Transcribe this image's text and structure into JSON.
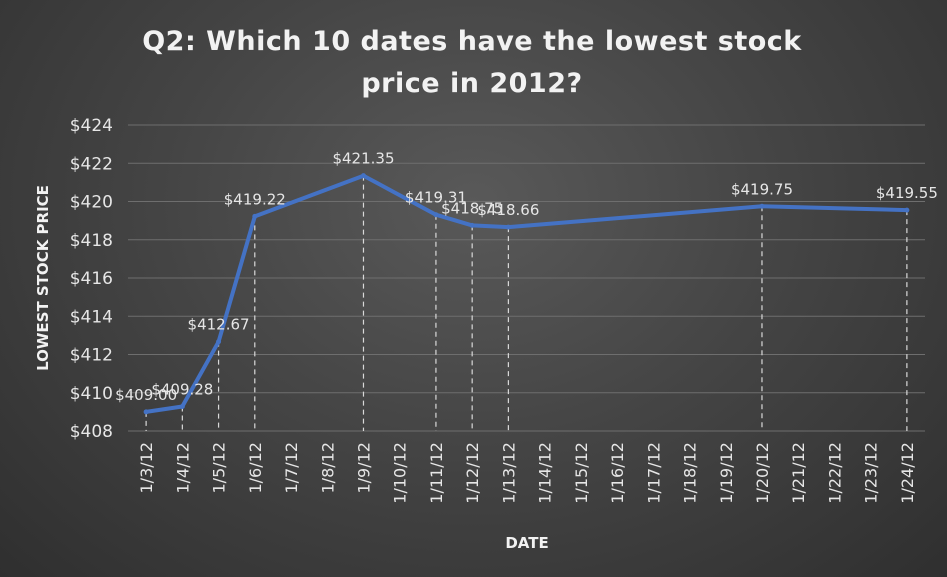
{
  "chart_data": {
    "type": "line",
    "title_line1": "Q2: Which 10 dates have the lowest stock",
    "title_line2": "price in 2012?",
    "xlabel": "DATE",
    "ylabel": "LOWEST STOCK PRICE",
    "ylim": [
      408,
      424
    ],
    "yticks": [
      408,
      410,
      412,
      414,
      416,
      418,
      420,
      422,
      424
    ],
    "ytick_labels": [
      "$408",
      "$410",
      "$412",
      "$414",
      "$416",
      "$418",
      "$420",
      "$422",
      "$424"
    ],
    "categories": [
      "1/3/12",
      "1/4/12",
      "1/5/12",
      "1/6/12",
      "1/7/12",
      "1/8/12",
      "1/9/12",
      "1/10/12",
      "1/11/12",
      "1/12/12",
      "1/13/12",
      "1/14/12",
      "1/15/12",
      "1/16/12",
      "1/17/12",
      "1/18/12",
      "1/19/12",
      "1/20/12",
      "1/21/12",
      "1/22/12",
      "1/23/12",
      "1/24/12"
    ],
    "points": [
      {
        "x": "1/3/12",
        "y": 409.0,
        "label": "$409.00"
      },
      {
        "x": "1/4/12",
        "y": 409.28,
        "label": "$409.28"
      },
      {
        "x": "1/5/12",
        "y": 412.67,
        "label": "$412.67"
      },
      {
        "x": "1/6/12",
        "y": 419.22,
        "label": "$419.22"
      },
      {
        "x": "1/9/12",
        "y": 421.35,
        "label": "$421.35"
      },
      {
        "x": "1/11/12",
        "y": 419.31,
        "label": "$419.31"
      },
      {
        "x": "1/12/12",
        "y": 418.75,
        "label": "$418.75"
      },
      {
        "x": "1/13/12",
        "y": 418.66,
        "label": "$418.66"
      },
      {
        "x": "1/20/12",
        "y": 419.75,
        "label": "$419.75"
      },
      {
        "x": "1/24/12",
        "y": 419.55,
        "label": "$419.55"
      }
    ],
    "grid": true,
    "legend": "none",
    "series_color": "#4472c4"
  }
}
